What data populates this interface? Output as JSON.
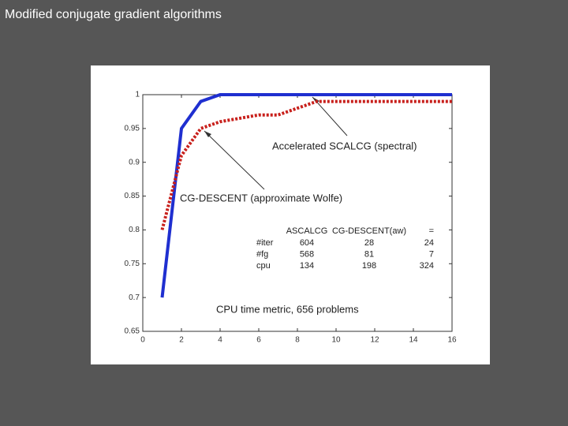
{
  "slide_title": "Modified conjugate gradient algorithms",
  "chart_data": {
    "type": "line",
    "x": [
      1,
      2,
      3,
      4,
      5,
      6,
      7,
      8,
      9,
      10,
      11,
      12,
      13,
      14,
      15,
      16
    ],
    "series": [
      {
        "name": "Accelerated SCALCG (spectral)",
        "color": "#1f2fd0",
        "style": "solid",
        "values": [
          0.7,
          0.95,
          0.99,
          1.0,
          1.0,
          1.0,
          1.0,
          1.0,
          1.0,
          1.0,
          1.0,
          1.0,
          1.0,
          1.0,
          1.0,
          1.0
        ]
      },
      {
        "name": "CG-DESCENT (approximate Wolfe)",
        "color": "#c8201c",
        "style": "dotted",
        "values": [
          0.8,
          0.91,
          0.95,
          0.96,
          0.965,
          0.97,
          0.97,
          0.98,
          0.99,
          0.99,
          0.99,
          0.99,
          0.99,
          0.99,
          0.99,
          0.99
        ]
      }
    ],
    "xlim": [
      0,
      16
    ],
    "xticks": [
      0,
      2,
      4,
      6,
      8,
      10,
      12,
      14,
      16
    ],
    "ylim": [
      0.65,
      1
    ],
    "yticks": [
      0.65,
      0.7,
      0.75,
      0.8,
      0.85,
      0.9,
      0.95,
      1
    ],
    "grid": false,
    "annotation": "CPU time metric, 656 problems",
    "table": {
      "header": [
        "ASCALCG",
        "CG-DESCENT(aw)",
        "="
      ],
      "rows": [
        [
          "#iter",
          604,
          28,
          24
        ],
        [
          "#fg",
          568,
          81,
          7
        ],
        [
          "cpu",
          134,
          198,
          324
        ]
      ]
    }
  }
}
